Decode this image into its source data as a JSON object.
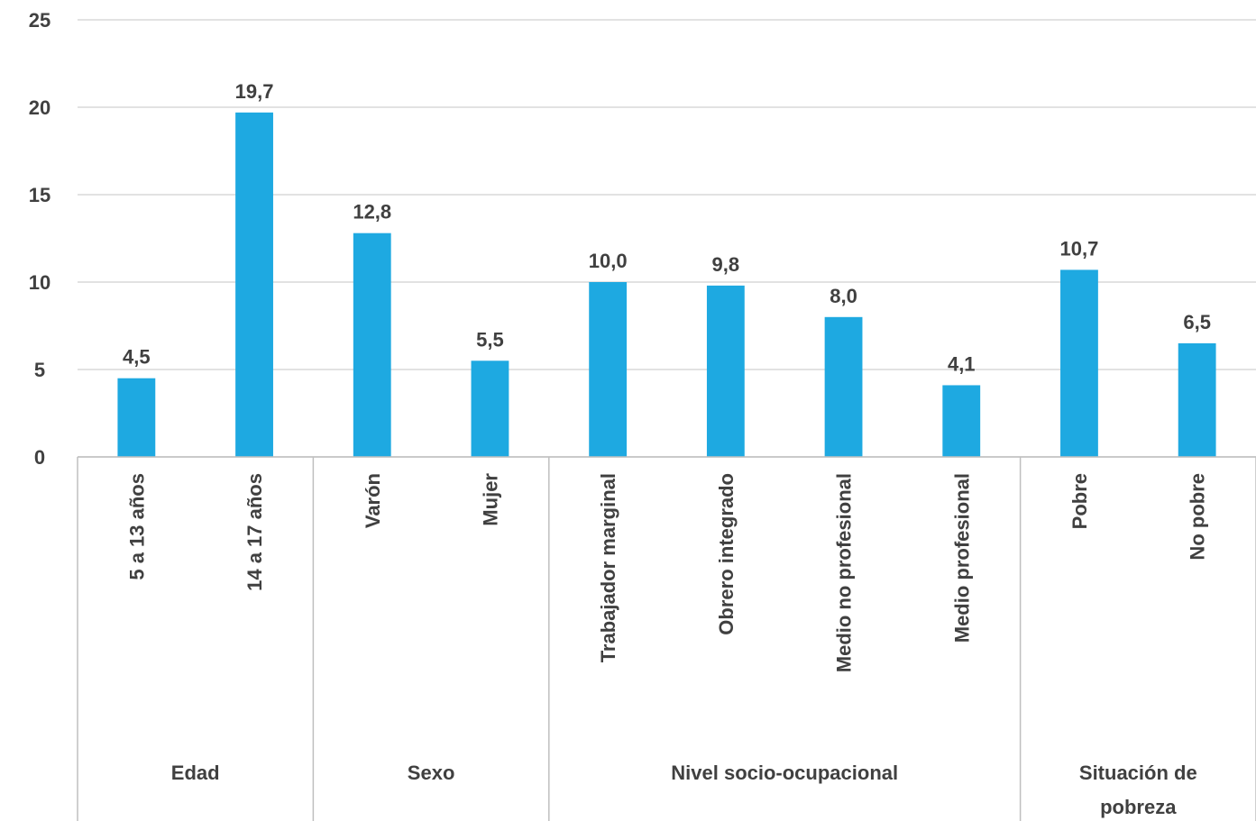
{
  "chart_data": {
    "type": "bar",
    "groups": [
      {
        "label": "Edad",
        "label_lines": [
          "Edad"
        ],
        "categories": [
          "5 a 13 años",
          "14 a 17 años"
        ],
        "values": [
          4.5,
          19.7
        ],
        "value_labels": [
          "4,5",
          "19,7"
        ]
      },
      {
        "label": "Sexo",
        "label_lines": [
          "Sexo"
        ],
        "categories": [
          "Varón",
          "Mujer"
        ],
        "values": [
          12.8,
          5.5
        ],
        "value_labels": [
          "12,8",
          "5,5"
        ]
      },
      {
        "label": "Nivel socio-ocupacional",
        "label_lines": [
          "Nivel socio-ocupacional"
        ],
        "categories": [
          "Trabajador marginal",
          "Obrero integrado",
          "Medio no profesional",
          "Medio profesional"
        ],
        "values": [
          10.0,
          9.8,
          8.0,
          4.1
        ],
        "value_labels": [
          "10,0",
          "9,8",
          "8,0",
          "4,1"
        ]
      },
      {
        "label": "Situación de pobreza",
        "label_lines": [
          "Situación de",
          "pobreza"
        ],
        "categories": [
          "Pobre",
          "No pobre"
        ],
        "values": [
          10.7,
          6.5
        ],
        "value_labels": [
          "10,7",
          "6,5"
        ]
      }
    ],
    "ylim": [
      0,
      25
    ],
    "yticks": [
      0,
      5,
      10,
      15,
      20,
      25
    ],
    "grid": true,
    "legend": "none",
    "title": "",
    "xlabel": "",
    "ylabel": "",
    "colors": {
      "bar": "#1EA9E1",
      "grid": "#D9D9D9",
      "axis_text": "#404040",
      "separator": "#BFBFBF"
    }
  }
}
